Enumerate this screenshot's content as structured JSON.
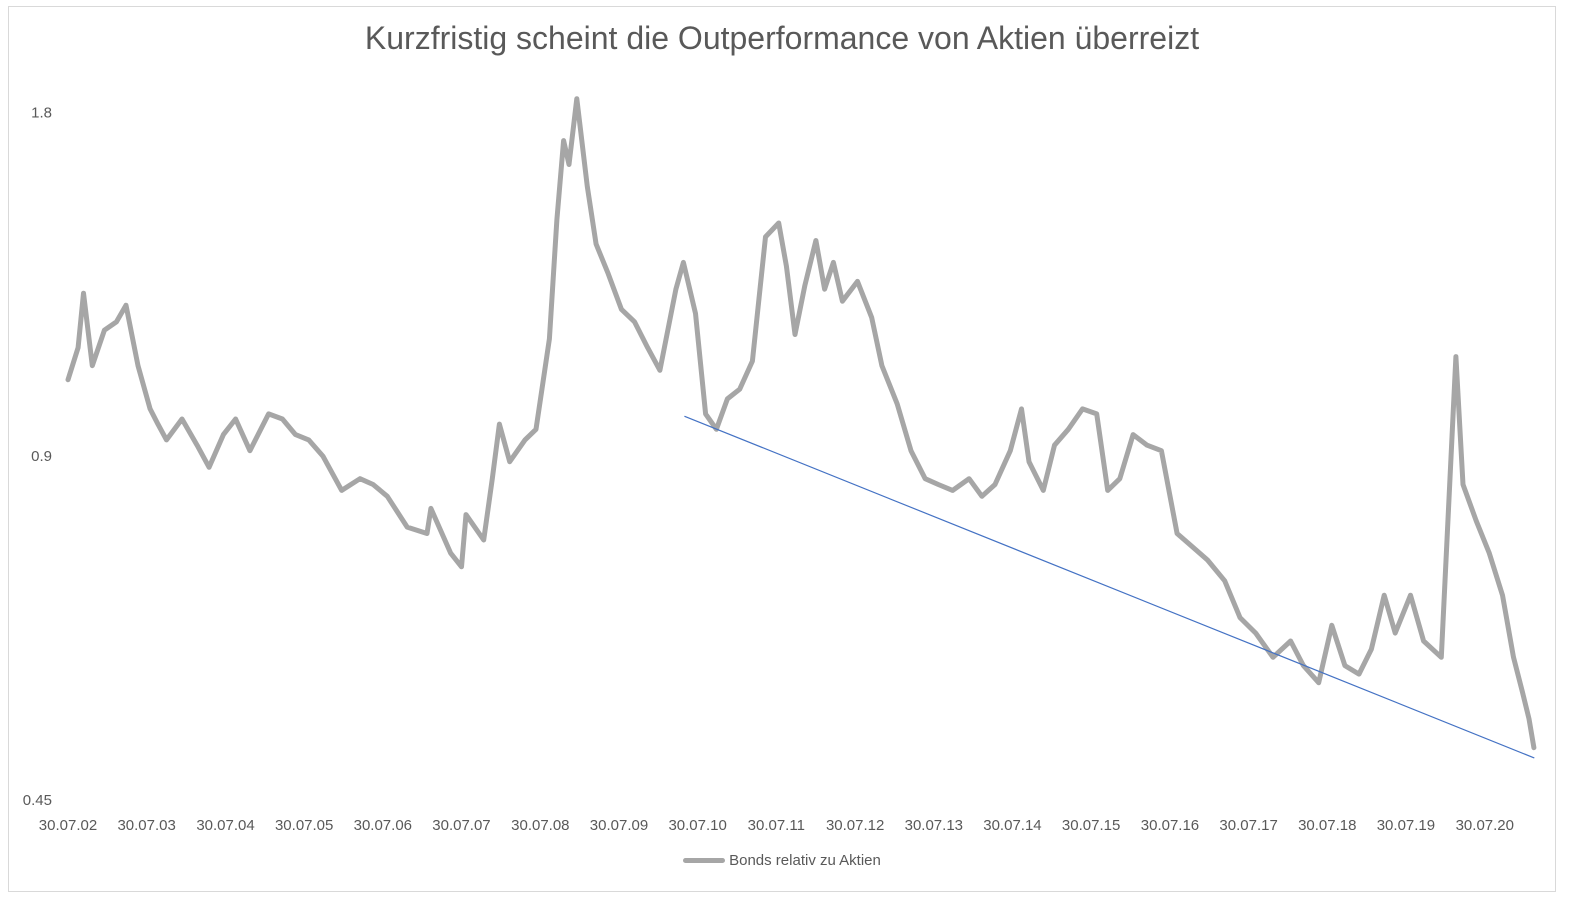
{
  "chart_data": {
    "type": "line",
    "title": "Kurzfristig scheint die Outperformance von Aktien überreizt",
    "xlabel": "",
    "ylabel": "",
    "y_scale": "log",
    "ylim": [
      0.45,
      2.0
    ],
    "y_ticks": [
      0.45,
      0.9,
      1.8
    ],
    "y_tick_labels": [
      "0.45",
      "0.9",
      "1.8"
    ],
    "x_tick_labels": [
      "30.07.02",
      "30.07.03",
      "30.07.04",
      "30.07.05",
      "30.07.06",
      "30.07.07",
      "30.07.08",
      "30.07.09",
      "30.07.10",
      "30.07.11",
      "30.07.12",
      "30.07.13",
      "30.07.14",
      "30.07.15",
      "30.07.16",
      "30.07.17",
      "30.07.18",
      "30.07.19",
      "30.07.20"
    ],
    "xlim": [
      "2002-07-30",
      "2021-03-20"
    ],
    "legend_position": "bottom",
    "grid": false,
    "series": [
      {
        "name": "Bonds relativ zu Aktien",
        "color": "#a6a6a6",
        "x": [
          "2002-07-30",
          "2002-09-15",
          "2002-10-10",
          "2002-11-20",
          "2003-01-15",
          "2003-03-12",
          "2003-04-25",
          "2003-06-20",
          "2003-08-15",
          "2003-09-20",
          "2003-10-30",
          "2004-01-10",
          "2004-03-20",
          "2004-05-15",
          "2004-07-20",
          "2004-09-15",
          "2004-11-20",
          "2005-02-15",
          "2005-04-20",
          "2005-06-20",
          "2005-08-20",
          "2005-10-25",
          "2006-01-20",
          "2006-04-15",
          "2006-06-15",
          "2006-08-20",
          "2006-11-20",
          "2007-02-20",
          "2007-03-10",
          "2007-06-10",
          "2007-07-30",
          "2007-08-20",
          "2007-11-10",
          "2007-12-20",
          "2008-01-22",
          "2008-03-10",
          "2008-05-20",
          "2008-07-10",
          "2008-09-10",
          "2008-10-15",
          "2008-11-15",
          "2008-12-10",
          "2009-01-15",
          "2009-03-05",
          "2009-04-15",
          "2009-06-10",
          "2009-08-10",
          "2009-10-10",
          "2009-12-10",
          "2010-02-05",
          "2010-04-20",
          "2010-05-25",
          "2010-07-20",
          "2010-09-05",
          "2010-10-25",
          "2010-12-15",
          "2011-02-10",
          "2011-04-10",
          "2011-06-10",
          "2011-08-10",
          "2011-09-15",
          "2011-10-25",
          "2011-12-10",
          "2012-01-30",
          "2012-03-10",
          "2012-04-20",
          "2012-06-01",
          "2012-08-10",
          "2012-10-15",
          "2012-12-01",
          "2013-02-10",
          "2013-04-15",
          "2013-06-20",
          "2013-08-20",
          "2013-10-25",
          "2014-01-10",
          "2014-03-10",
          "2014-05-10",
          "2014-07-20",
          "2014-09-10",
          "2014-10-15",
          "2014-12-20",
          "2015-02-10",
          "2015-04-15",
          "2015-06-20",
          "2015-08-25",
          "2015-10-15",
          "2015-12-10",
          "2016-02-10",
          "2016-04-15",
          "2016-06-20",
          "2016-09-01",
          "2016-11-10",
          "2017-01-20",
          "2017-04-10",
          "2017-06-20",
          "2017-09-01",
          "2017-11-20",
          "2018-02-10",
          "2018-04-10",
          "2018-06-20",
          "2018-08-20",
          "2018-10-20",
          "2018-12-24",
          "2019-02-20",
          "2019-04-20",
          "2019-06-10",
          "2019-08-20",
          "2019-10-20",
          "2020-01-10",
          "2020-03-18",
          "2020-04-20",
          "2020-06-20",
          "2020-08-20",
          "2020-10-20",
          "2020-12-10",
          "2021-01-20",
          "2021-02-20",
          "2021-03-15"
        ],
        "values": [
          1.05,
          1.12,
          1.25,
          1.08,
          1.16,
          1.18,
          1.22,
          1.08,
          0.99,
          0.96,
          0.93,
          0.97,
          0.92,
          0.88,
          0.94,
          0.97,
          0.91,
          0.98,
          0.97,
          0.94,
          0.93,
          0.9,
          0.84,
          0.86,
          0.85,
          0.83,
          0.78,
          0.77,
          0.81,
          0.74,
          0.72,
          0.8,
          0.76,
          0.86,
          0.96,
          0.89,
          0.93,
          0.95,
          1.14,
          1.45,
          1.7,
          1.62,
          1.85,
          1.55,
          1.38,
          1.3,
          1.21,
          1.18,
          1.12,
          1.07,
          1.26,
          1.33,
          1.2,
          0.98,
          0.95,
          1.01,
          1.03,
          1.09,
          1.4,
          1.44,
          1.32,
          1.15,
          1.27,
          1.39,
          1.26,
          1.33,
          1.23,
          1.28,
          1.19,
          1.08,
          1.0,
          0.91,
          0.86,
          0.85,
          0.84,
          0.86,
          0.83,
          0.85,
          0.91,
          0.99,
          0.89,
          0.84,
          0.92,
          0.95,
          0.99,
          0.98,
          0.84,
          0.86,
          0.94,
          0.92,
          0.91,
          0.77,
          0.75,
          0.73,
          0.7,
          0.65,
          0.63,
          0.6,
          0.62,
          0.59,
          0.57,
          0.64,
          0.59,
          0.58,
          0.61,
          0.68,
          0.63,
          0.68,
          0.62,
          0.6,
          1.1,
          0.85,
          0.79,
          0.74,
          0.68,
          0.6,
          0.56,
          0.53,
          0.5
        ]
      },
      {
        "name": "",
        "color": "#4472c4",
        "x": [
          "2010-06-01",
          "2021-03-15"
        ],
        "values": [
          0.975,
          0.49
        ]
      }
    ]
  }
}
